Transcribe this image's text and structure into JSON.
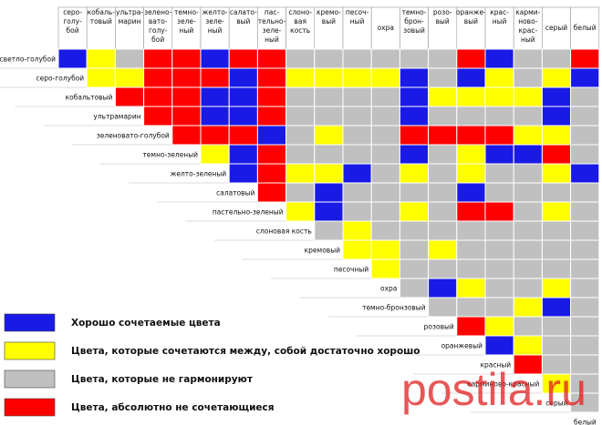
{
  "header": {
    "columns": [
      [
        "серо-",
        "голу-",
        "бой"
      ],
      [
        "кобаль-",
        "товый"
      ],
      [
        "ультра-",
        "марин"
      ],
      [
        "зелено-",
        "вато-",
        "голу-",
        "бой"
      ],
      [
        "темно-",
        "зеле-",
        "ный"
      ],
      [
        "желто-",
        "зеле-",
        "ный"
      ],
      [
        "салато-",
        "вый"
      ],
      [
        "пас-",
        "тельно-",
        "зеле-",
        "ный"
      ],
      [
        "слоно-",
        "вая",
        "кость"
      ],
      [
        "кремо-",
        "вый"
      ],
      [
        "песоч-",
        "ный"
      ],
      [
        "охра"
      ],
      [
        "темно-",
        "брон-",
        "зовый"
      ],
      [
        "розо-",
        "вый"
      ],
      [
        "оранже-",
        "вый"
      ],
      [
        "крас-",
        "ный"
      ],
      [
        "карми-",
        "ново-",
        "крас-",
        "ный"
      ],
      [
        "серый"
      ],
      [
        "белый"
      ]
    ]
  },
  "matrix": {
    "rows": [
      {
        "label": "светло-голубой",
        "cells": [
          "#1a1ae6",
          "#ffff00",
          "#c0c0c0",
          "#ff0000",
          "#ff0000",
          "#1a1ae6",
          "#ff0000",
          "#ff0000",
          "#c0c0c0",
          "#c0c0c0",
          "#c0c0c0",
          "#c0c0c0",
          "#c0c0c0",
          "#c0c0c0",
          "#ff0000",
          "#1a1ae6",
          "#c0c0c0",
          "#c0c0c0",
          "#ff0000"
        ]
      },
      {
        "label": "серо-голубой",
        "cells": [
          "#ffff00",
          "#ffff00",
          "#ff0000",
          "#ff0000",
          "#ff0000",
          "#1a1ae6",
          "#ff0000",
          "#ffff00",
          "#ffff00",
          "#ffff00",
          "#ffff00",
          "#1a1ae6",
          "#c0c0c0",
          "#1a1ae6",
          "#ffff00",
          "#c0c0c0",
          "#ffff00",
          "#1a1ae6"
        ]
      },
      {
        "label": "кобальтовый",
        "cells": [
          "#ff0000",
          "#ff0000",
          "#ff0000",
          "#1a1ae6",
          "#1a1ae6",
          "#ff0000",
          "#c0c0c0",
          "#c0c0c0",
          "#c0c0c0",
          "#c0c0c0",
          "#1a1ae6",
          "#ffff00",
          "#ffff00",
          "#ffff00",
          "#ffff00",
          "#1a1ae6",
          "#c0c0c0"
        ]
      },
      {
        "label": "ультрамарин",
        "cells": [
          "#ff0000",
          "#ff0000",
          "#1a1ae6",
          "#1a1ae6",
          "#ff0000",
          "#c0c0c0",
          "#c0c0c0",
          "#c0c0c0",
          "#c0c0c0",
          "#1a1ae6",
          "#c0c0c0",
          "#c0c0c0",
          "#c0c0c0",
          "#c0c0c0",
          "#1a1ae6",
          "#c0c0c0"
        ]
      },
      {
        "label": "зеленовато-голубой",
        "cells": [
          "#ff0000",
          "#ff0000",
          "#ff0000",
          "#1a1ae6",
          "#c0c0c0",
          "#ffff00",
          "#c0c0c0",
          "#c0c0c0",
          "#ff0000",
          "#ff0000",
          "#ff0000",
          "#ff0000",
          "#ffff00",
          "#ffff00",
          "#c0c0c0"
        ]
      },
      {
        "label": "темно-зеленый",
        "cells": [
          "#ffff00",
          "#1a1ae6",
          "#ff0000",
          "#c0c0c0",
          "#c0c0c0",
          "#c0c0c0",
          "#c0c0c0",
          "#1a1ae6",
          "#c0c0c0",
          "#ffff00",
          "#1a1ae6",
          "#1a1ae6",
          "#ff0000",
          "#c0c0c0"
        ]
      },
      {
        "label": "желто-зеленый",
        "cells": [
          "#1a1ae6",
          "#ff0000",
          "#ffff00",
          "#ffff00",
          "#1a1ae6",
          "#c0c0c0",
          "#ffff00",
          "#c0c0c0",
          "#ffff00",
          "#c0c0c0",
          "#c0c0c0",
          "#ffff00",
          "#1a1ae6"
        ]
      },
      {
        "label": "салатовый",
        "cells": [
          "#ff0000",
          "#c0c0c0",
          "#1a1ae6",
          "#c0c0c0",
          "#c0c0c0",
          "#c0c0c0",
          "#c0c0c0",
          "#1a1ae6",
          "#c0c0c0",
          "#c0c0c0",
          "#c0c0c0",
          "#c0c0c0"
        ]
      },
      {
        "label": "пастельно-зеленый",
        "cells": [
          "#ffff00",
          "#1a1ae6",
          "#c0c0c0",
          "#c0c0c0",
          "#ffff00",
          "#c0c0c0",
          "#ff0000",
          "#ff0000",
          "#c0c0c0",
          "#ffff00",
          "#c0c0c0"
        ]
      },
      {
        "label": "слоновая кость",
        "cells": [
          "#c0c0c0",
          "#ffff00",
          "#c0c0c0",
          "#c0c0c0",
          "#c0c0c0",
          "#c0c0c0",
          "#c0c0c0",
          "#c0c0c0",
          "#c0c0c0",
          "#c0c0c0"
        ]
      },
      {
        "label": "кремовый",
        "cells": [
          "#ffff00",
          "#ffff00",
          "#c0c0c0",
          "#ffff00",
          "#c0c0c0",
          "#c0c0c0",
          "#c0c0c0",
          "#c0c0c0",
          "#c0c0c0"
        ]
      },
      {
        "label": "песочный",
        "cells": [
          "#ffff00",
          "#c0c0c0",
          "#c0c0c0",
          "#c0c0c0",
          "#c0c0c0",
          "#c0c0c0",
          "#c0c0c0",
          "#c0c0c0"
        ]
      },
      {
        "label": "охра",
        "cells": [
          "#c0c0c0",
          "#1a1ae6",
          "#ffff00",
          "#c0c0c0",
          "#c0c0c0",
          "#ffff00",
          "#c0c0c0"
        ]
      },
      {
        "label": "темно-бронзовый",
        "cells": [
          "#c0c0c0",
          "#c0c0c0",
          "#c0c0c0",
          "#ffff00",
          "#1a1ae6",
          "#c0c0c0"
        ]
      },
      {
        "label": "розовый",
        "cells": [
          "#ff0000",
          "#ffff00",
          "#c0c0c0",
          "#c0c0c0",
          "#c0c0c0"
        ]
      },
      {
        "label": "оранжевый",
        "cells": [
          "#1a1ae6",
          "#ffff00",
          "#c0c0c0",
          "#c0c0c0"
        ]
      },
      {
        "label": "красный",
        "cells": [
          "#ff0000",
          "#c0c0c0",
          "#c0c0c0"
        ]
      },
      {
        "label": "карминово-красный",
        "cells": [
          "#ffff00",
          "#c0c0c0"
        ]
      },
      {
        "label": "серый",
        "cells": [
          "#c0c0c0"
        ]
      },
      {
        "label": "белый",
        "cells": []
      }
    ]
  },
  "legend": [
    {
      "color": "#1a1ae6",
      "label": "Хорошо сочетаемые цвета"
    },
    {
      "color": "#ffff00",
      "label": "Цвета, которые сочетаются между, собой достаточно хорошо"
    },
    {
      "color": "#c0c0c0",
      "label": "Цвета, которые не гармонируют"
    },
    {
      "color": "#ff0000",
      "label": "Цвета, абсолютно не сочетающиеся"
    }
  ],
  "watermark": "postila.ru"
}
